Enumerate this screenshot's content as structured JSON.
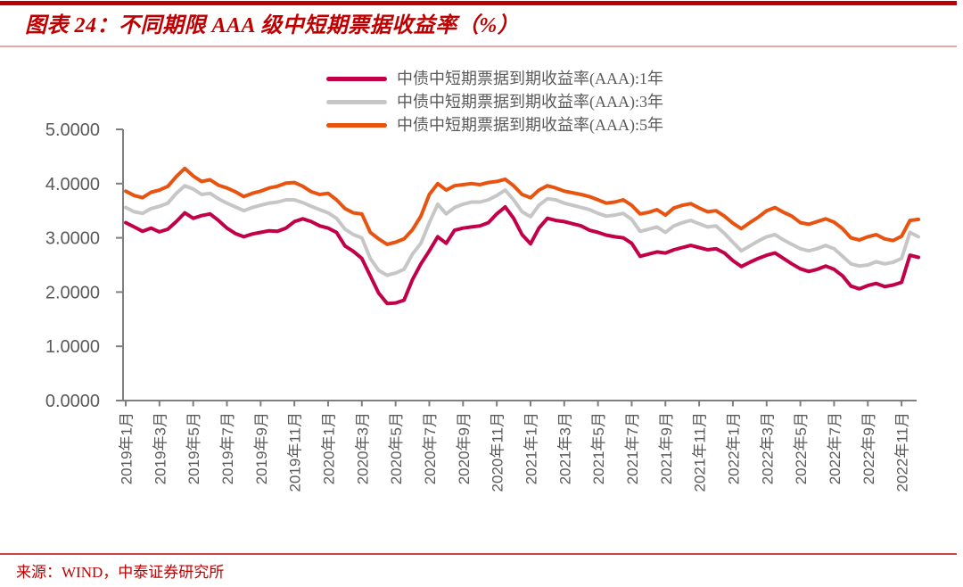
{
  "title": "图表 24：不同期限 AAA 级中短期票据收益率（%）",
  "source": "来源：WIND，中泰证券研究所",
  "colors": {
    "accent_red": "#C00000",
    "title_rule": "#E9A8A8",
    "footer_rule": "#CC4444",
    "axis": "#7F7F7F",
    "tick_label": "#595959",
    "legend_text": "#5A5A5A",
    "series_1y": "#C20049",
    "series_3y": "#C6C6C6",
    "series_5y": "#E85310"
  },
  "chart_data": {
    "type": "line",
    "title": "不同期限 AAA 级中短期票据收益率（%）",
    "xlabel": "",
    "ylabel": "",
    "ylim": [
      0,
      5
    ],
    "grid": false,
    "legend_position": "top-center",
    "x_start": "2019-01",
    "x_end": "2022-12",
    "sampling": "semi-monthly (2 points per month)",
    "y_tick_labels": [
      "0.0000",
      "1.0000",
      "2.0000",
      "3.0000",
      "4.0000",
      "5.0000"
    ],
    "x_tick_interval_months": 2,
    "x_tick_labels": [
      "2019年1月",
      "2019年3月",
      "2019年5月",
      "2019年7月",
      "2019年9月",
      "2019年11月",
      "2020年1月",
      "2020年3月",
      "2020年5月",
      "2020年7月",
      "2020年9月",
      "2020年11月",
      "2021年1月",
      "2021年3月",
      "2021年5月",
      "2021年7月",
      "2021年9月",
      "2021年11月",
      "2022年1月",
      "2022年3月",
      "2022年5月",
      "2022年7月",
      "2022年9月",
      "2022年11月"
    ],
    "series": [
      {
        "id": "1y",
        "name": "中债中短期票据到期收益率(AAA):1年",
        "color": "#C20049",
        "values": [
          3.28,
          3.2,
          3.12,
          3.18,
          3.11,
          3.16,
          3.3,
          3.46,
          3.36,
          3.41,
          3.44,
          3.32,
          3.18,
          3.08,
          3.02,
          3.07,
          3.1,
          3.13,
          3.12,
          3.18,
          3.3,
          3.35,
          3.3,
          3.22,
          3.18,
          3.1,
          2.85,
          2.75,
          2.62,
          2.3,
          1.98,
          1.79,
          1.8,
          1.85,
          2.23,
          2.52,
          2.76,
          3.02,
          2.9,
          3.14,
          3.18,
          3.2,
          3.22,
          3.28,
          3.44,
          3.57,
          3.36,
          3.06,
          2.89,
          3.18,
          3.36,
          3.32,
          3.3,
          3.26,
          3.22,
          3.14,
          3.1,
          3.05,
          3.02,
          3.0,
          2.9,
          2.66,
          2.7,
          2.74,
          2.72,
          2.78,
          2.82,
          2.86,
          2.82,
          2.78,
          2.8,
          2.72,
          2.58,
          2.47,
          2.55,
          2.62,
          2.68,
          2.72,
          2.62,
          2.52,
          2.43,
          2.38,
          2.42,
          2.48,
          2.42,
          2.3,
          2.11,
          2.06,
          2.12,
          2.16,
          2.1,
          2.13,
          2.18,
          2.68,
          2.64
        ]
      },
      {
        "id": "3y",
        "name": "中债中短期票据到期收益率(AAA):3年",
        "color": "#C6C6C6",
        "values": [
          3.56,
          3.48,
          3.45,
          3.54,
          3.58,
          3.64,
          3.82,
          3.96,
          3.9,
          3.8,
          3.82,
          3.72,
          3.64,
          3.57,
          3.5,
          3.56,
          3.6,
          3.64,
          3.66,
          3.7,
          3.7,
          3.65,
          3.58,
          3.52,
          3.46,
          3.36,
          3.16,
          3.06,
          3.0,
          2.62,
          2.4,
          2.31,
          2.35,
          2.42,
          2.7,
          2.9,
          3.28,
          3.62,
          3.44,
          3.56,
          3.62,
          3.66,
          3.66,
          3.7,
          3.78,
          3.88,
          3.7,
          3.48,
          3.39,
          3.6,
          3.72,
          3.7,
          3.64,
          3.6,
          3.56,
          3.52,
          3.45,
          3.4,
          3.42,
          3.45,
          3.34,
          3.12,
          3.16,
          3.2,
          3.1,
          3.22,
          3.28,
          3.32,
          3.26,
          3.2,
          3.22,
          3.08,
          2.92,
          2.76,
          2.85,
          2.94,
          3.02,
          3.06,
          2.96,
          2.88,
          2.8,
          2.76,
          2.8,
          2.86,
          2.8,
          2.66,
          2.52,
          2.48,
          2.5,
          2.56,
          2.52,
          2.55,
          2.62,
          3.1,
          3.02
        ]
      },
      {
        "id": "5y",
        "name": "中债中短期票据到期收益率(AAA):5年",
        "color": "#E85310",
        "values": [
          3.86,
          3.78,
          3.74,
          3.84,
          3.88,
          3.95,
          4.13,
          4.28,
          4.14,
          4.04,
          4.07,
          3.97,
          3.92,
          3.85,
          3.76,
          3.82,
          3.86,
          3.92,
          3.95,
          4.01,
          4.02,
          3.95,
          3.85,
          3.8,
          3.82,
          3.7,
          3.54,
          3.46,
          3.44,
          3.1,
          2.98,
          2.88,
          2.92,
          2.98,
          3.15,
          3.4,
          3.8,
          4.0,
          3.88,
          3.96,
          3.98,
          4.0,
          3.98,
          4.02,
          4.04,
          4.08,
          3.96,
          3.8,
          3.74,
          3.88,
          3.96,
          3.92,
          3.86,
          3.83,
          3.8,
          3.76,
          3.7,
          3.64,
          3.66,
          3.7,
          3.6,
          3.44,
          3.47,
          3.52,
          3.42,
          3.55,
          3.6,
          3.63,
          3.55,
          3.48,
          3.5,
          3.4,
          3.27,
          3.17,
          3.28,
          3.38,
          3.5,
          3.56,
          3.47,
          3.4,
          3.28,
          3.25,
          3.3,
          3.35,
          3.29,
          3.17,
          3.0,
          2.96,
          3.02,
          3.06,
          2.98,
          2.95,
          3.03,
          3.32,
          3.34
        ]
      }
    ]
  }
}
